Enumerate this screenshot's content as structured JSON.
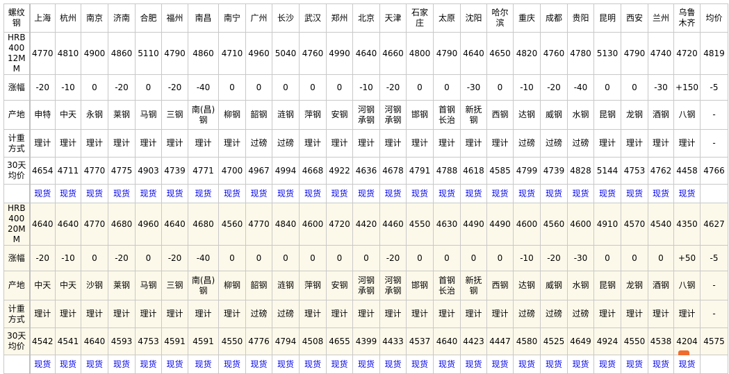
{
  "header": {
    "corner": "螺纹钢",
    "cities": [
      "上海",
      "杭州",
      "南京",
      "济南",
      "合肥",
      "福州",
      "南昌",
      "南宁",
      "广州",
      "长沙",
      "武汉",
      "郑州",
      "北京",
      "天津",
      "石家庄",
      "太原",
      "沈阳",
      "哈尔滨",
      "重庆",
      "成都",
      "贵阳",
      "昆明",
      "西安",
      "兰州",
      "乌鲁木齐",
      "均价"
    ]
  },
  "row_labels": {
    "change": "涨幅",
    "origin": "产地",
    "weigh": "计重方式",
    "avg30": "30天均价"
  },
  "spot_label": "现货",
  "blocks": [
    {
      "spec": "HRB400 12MM",
      "price": [
        "4770",
        "4810",
        "4900",
        "4860",
        "5110",
        "4790",
        "4860",
        "4710",
        "4960",
        "5040",
        "4760",
        "4990",
        "4640",
        "4660",
        "4800",
        "4790",
        "4640",
        "4650",
        "4820",
        "4760",
        "4780",
        "5130",
        "4790",
        "4740",
        "4720",
        "4819"
      ],
      "change": [
        "-20",
        "-10",
        "0",
        "-20",
        "0",
        "-20",
        "-40",
        "0",
        "0",
        "0",
        "0",
        "0",
        "-10",
        "-20",
        "0",
        "0",
        "-30",
        "0",
        "-10",
        "-20",
        "-40",
        "0",
        "0",
        "-30",
        "+150",
        "-5"
      ],
      "origin": [
        "申特",
        "中天",
        "永钢",
        "莱钢",
        "马钢",
        "三钢",
        "南(昌)钢",
        "柳钢",
        "韶钢",
        "涟钢",
        "萍钢",
        "安钢",
        "河钢承钢",
        "河钢承钢",
        "邯钢",
        "首钢长治",
        "新抚钢",
        "西钢",
        "达钢",
        "威钢",
        "水钢",
        "昆钢",
        "龙钢",
        "酒钢",
        "八钢",
        "-"
      ],
      "weigh": [
        "理计",
        "理计",
        "理计",
        "理计",
        "理计",
        "理计",
        "理计",
        "理计",
        "过磅",
        "过磅",
        "理计",
        "理计",
        "理计",
        "理计",
        "理计",
        "理计",
        "理计",
        "理计",
        "过磅",
        "过磅",
        "过磅",
        "理计",
        "理计",
        "理计",
        "理计",
        "-"
      ],
      "avg30": [
        "4654",
        "4711",
        "4770",
        "4775",
        "4903",
        "4739",
        "4771",
        "4700",
        "4967",
        "4994",
        "4668",
        "4922",
        "4636",
        "4678",
        "4791",
        "4788",
        "4618",
        "4585",
        "4799",
        "4739",
        "4828",
        "5144",
        "4753",
        "4762",
        "4458",
        "4766"
      ]
    },
    {
      "spec": "HRB400 20MM",
      "price": [
        "4640",
        "4640",
        "4770",
        "4680",
        "4960",
        "4640",
        "4680",
        "4560",
        "4770",
        "4840",
        "4600",
        "4720",
        "4420",
        "4460",
        "4550",
        "4630",
        "4490",
        "4490",
        "4600",
        "4560",
        "4600",
        "4910",
        "4570",
        "4540",
        "4350",
        "4627"
      ],
      "change": [
        "-20",
        "-10",
        "0",
        "-20",
        "0",
        "-20",
        "-40",
        "0",
        "0",
        "0",
        "0",
        "0",
        "0",
        "-20",
        "0",
        "0",
        "0",
        "0",
        "-10",
        "-20",
        "-30",
        "0",
        "0",
        "0",
        "+50",
        "-5"
      ],
      "origin": [
        "中天",
        "中天",
        "沙钢",
        "莱钢",
        "马钢",
        "三钢",
        "南(昌)钢",
        "柳钢",
        "韶钢",
        "涟钢",
        "萍钢",
        "安钢",
        "河钢承钢",
        "河钢承钢",
        "邯钢",
        "首钢长治",
        "新抚钢",
        "西钢",
        "达钢",
        "威钢",
        "水钢",
        "昆钢",
        "龙钢",
        "酒钢",
        "八钢",
        "-"
      ],
      "weigh": [
        "理计",
        "理计",
        "理计",
        "理计",
        "理计",
        "理计",
        "理计",
        "理计",
        "过磅",
        "过磅",
        "理计",
        "理计",
        "理计",
        "理计",
        "理计",
        "理计",
        "理计",
        "理计",
        "过磅",
        "过磅",
        "过磅",
        "理计",
        "理计",
        "理计",
        "理计",
        "-"
      ],
      "avg30": [
        "4542",
        "4541",
        "4640",
        "4593",
        "4753",
        "4591",
        "4591",
        "4550",
        "4776",
        "4794",
        "4508",
        "4655",
        "4399",
        "4433",
        "4537",
        "4640",
        "4423",
        "4447",
        "4580",
        "4525",
        "4649",
        "4924",
        "4550",
        "4538",
        "4204",
        "4575"
      ]
    }
  ],
  "colors": {
    "link": "#0000ee",
    "cream_bg": "#fdf9ea",
    "border": "#c8c8c8"
  }
}
